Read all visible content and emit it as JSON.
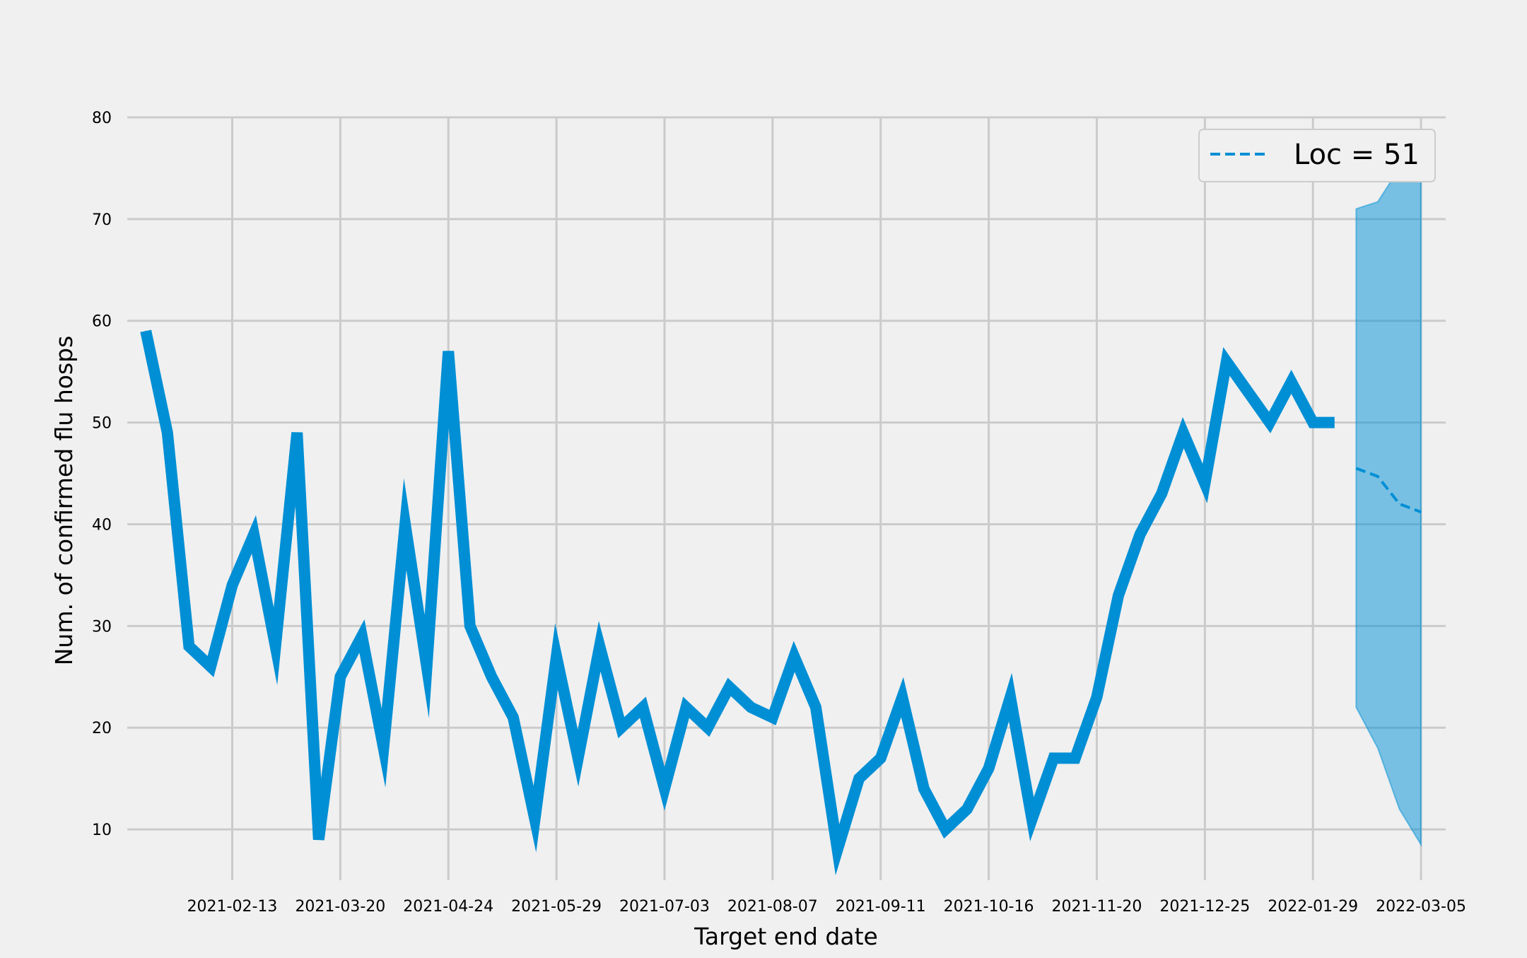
{
  "chart_data": {
    "type": "line",
    "title": "",
    "xlabel": "Target end date",
    "ylabel": "Num. of confirmed flu hosps",
    "x_ticks": [
      "2021-02-13",
      "2021-03-20",
      "2021-04-24",
      "2021-05-29",
      "2021-07-03",
      "2021-08-07",
      "2021-09-11",
      "2021-10-16",
      "2021-11-20",
      "2021-12-25",
      "2022-01-29",
      "2022-03-05"
    ],
    "y_ticks": [
      10,
      20,
      30,
      40,
      50,
      60,
      70,
      80
    ],
    "ylim": [
      5,
      80
    ],
    "xlim": [
      "2021-01-10",
      "2022-03-13"
    ],
    "grid": true,
    "legend": {
      "position": "top-right",
      "entries": [
        "Loc = 51"
      ]
    },
    "colors": {
      "line": "#008fd5",
      "band": "#7bbde2",
      "background": "#f0f0f0",
      "grid": "#cbcbcb"
    },
    "series": [
      {
        "style": "solid",
        "x": [
          "2021-01-16",
          "2021-01-23",
          "2021-01-30",
          "2021-02-06",
          "2021-02-13",
          "2021-02-20",
          "2021-02-27",
          "2021-03-06",
          "2021-03-13",
          "2021-03-20",
          "2021-03-27",
          "2021-04-03",
          "2021-04-10",
          "2021-04-17",
          "2021-04-24",
          "2021-05-01",
          "2021-05-08",
          "2021-05-15",
          "2021-05-22",
          "2021-05-29",
          "2021-06-05",
          "2021-06-12",
          "2021-06-19",
          "2021-06-26",
          "2021-07-03",
          "2021-07-10",
          "2021-07-17",
          "2021-07-24",
          "2021-07-31",
          "2021-08-07",
          "2021-08-14",
          "2021-08-21",
          "2021-08-28",
          "2021-09-04",
          "2021-09-11",
          "2021-09-18",
          "2021-09-25",
          "2021-10-02",
          "2021-10-09",
          "2021-10-16",
          "2021-10-23",
          "2021-10-30",
          "2021-11-06",
          "2021-11-13",
          "2021-11-20",
          "2021-11-27",
          "2021-12-04",
          "2021-12-11",
          "2021-12-18",
          "2021-12-25",
          "2022-01-01",
          "2022-01-08",
          "2022-01-15",
          "2022-01-22",
          "2022-01-29",
          "2022-02-05"
        ],
        "values": [
          59,
          49,
          28,
          26,
          34,
          39,
          28,
          49,
          9,
          25,
          29,
          18,
          40,
          26,
          57,
          30,
          25,
          21,
          11,
          27,
          17,
          28,
          20,
          22,
          14,
          22,
          20,
          24,
          22,
          21,
          27,
          22,
          8,
          15,
          17,
          23,
          14,
          10,
          12,
          16,
          23,
          11,
          17,
          17,
          23,
          33,
          39,
          43,
          49,
          44,
          56,
          53,
          50,
          54,
          50,
          50
        ]
      },
      {
        "name": "Loc = 51",
        "style": "dashed",
        "x": [
          "2022-02-12",
          "2022-02-19",
          "2022-02-26",
          "2022-03-05"
        ],
        "values": [
          45.5,
          44.7,
          42.0,
          41.2
        ]
      }
    ],
    "band": {
      "x": [
        "2022-02-12",
        "2022-02-19",
        "2022-02-26",
        "2022-03-05"
      ],
      "lower": [
        22,
        18,
        12,
        8.5
      ],
      "upper": [
        71,
        71.7,
        75,
        77
      ]
    }
  }
}
